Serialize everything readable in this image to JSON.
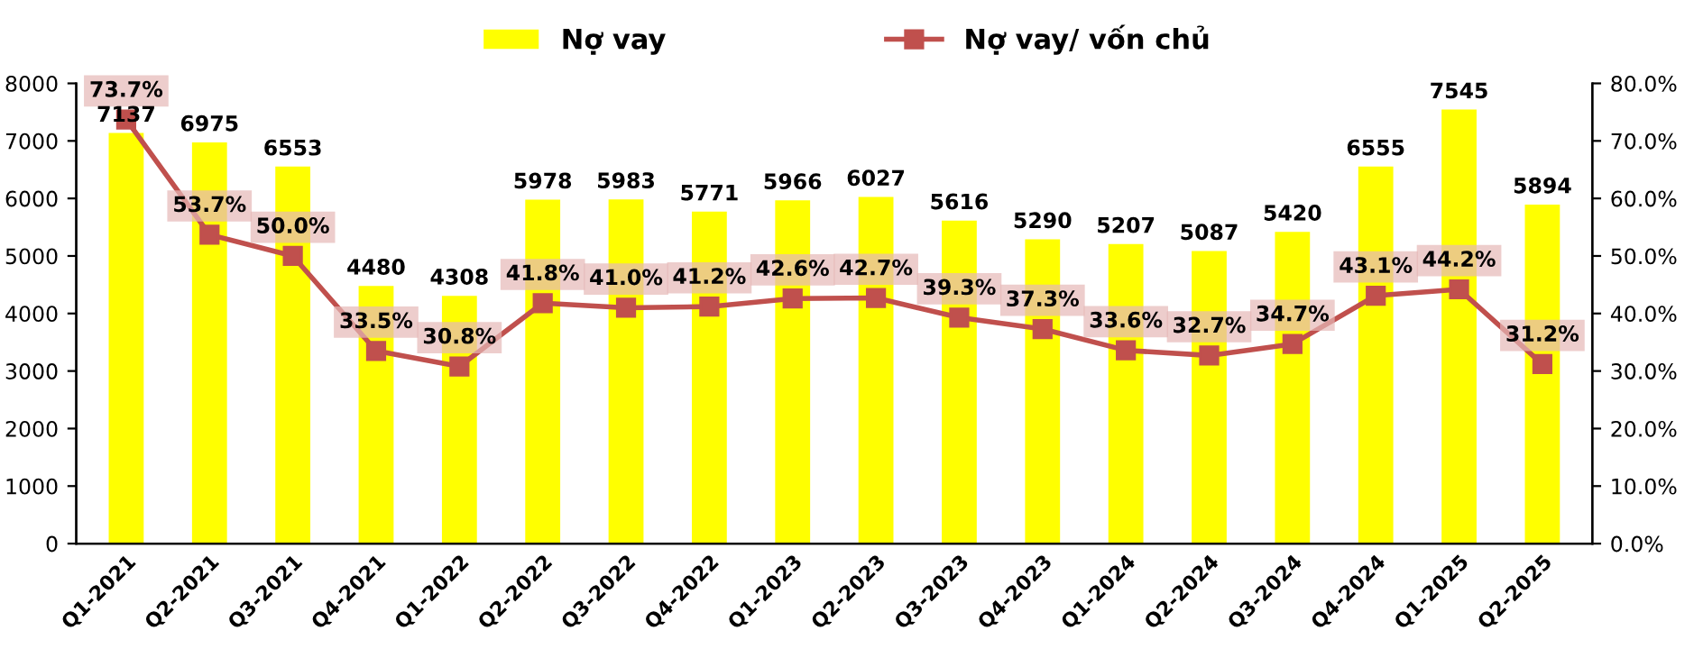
{
  "chart_data": {
    "type": "bar",
    "categories": [
      "Q1-2021",
      "Q2-2021",
      "Q3-2021",
      "Q4-2021",
      "Q1-2022",
      "Q2-2022",
      "Q3-2022",
      "Q4-2022",
      "Q1-2023",
      "Q2-2023",
      "Q3-2023",
      "Q4-2023",
      "Q1-2024",
      "Q2-2024",
      "Q3-2024",
      "Q4-2024",
      "Q1-2025",
      "Q2-2025"
    ],
    "series": [
      {
        "name": "Nợ vay",
        "color": "#ffff00",
        "values": [
          7137,
          6975,
          6553,
          4480,
          4308,
          5978,
          5983,
          5771,
          5966,
          6027,
          5616,
          5290,
          5207,
          5087,
          5420,
          6555,
          7545,
          5894
        ],
        "value_labels": [
          "7137",
          "6975",
          "6553",
          "4480",
          "4308",
          "5978",
          "5983",
          "5771",
          "5966",
          "6027",
          "5616",
          "5290",
          "5207",
          "5087",
          "5420",
          "6555",
          "7545",
          "5894"
        ]
      },
      {
        "name": "Nợ vay/ vốn chủ",
        "type": "line",
        "axis": "y2",
        "color": "#c0504d",
        "marker": "square",
        "line_style": "solid",
        "values": [
          73.7,
          53.7,
          50.0,
          33.5,
          30.8,
          41.8,
          41.0,
          41.2,
          42.6,
          42.7,
          39.3,
          37.3,
          33.6,
          32.7,
          34.7,
          43.1,
          44.2,
          31.2
        ],
        "value_labels": [
          "73.7%",
          "53.7%",
          "50.0%",
          "33.5%",
          "30.8%",
          "41.8%",
          "41.0%",
          "41.2%",
          "42.6%",
          "42.7%",
          "39.3%",
          "37.3%",
          "33.6%",
          "32.7%",
          "34.7%",
          "43.1%",
          "44.2%",
          "31.2%"
        ]
      }
    ],
    "ylim": [
      0,
      8000
    ],
    "yticks": [
      0,
      1000,
      2000,
      3000,
      4000,
      5000,
      6000,
      7000,
      8000
    ],
    "y2lim": [
      0,
      80
    ],
    "y2ticks": [
      {
        "value": 0,
        "label": "0.0%"
      },
      {
        "value": 10,
        "label": "10.0%"
      },
      {
        "value": 20,
        "label": "20.0%"
      },
      {
        "value": 30,
        "label": "30.0%"
      },
      {
        "value": 40,
        "label": "40.0%"
      },
      {
        "value": 50,
        "label": "50.0%"
      },
      {
        "value": 60,
        "label": "60.0%"
      },
      {
        "value": 70,
        "label": "70.0%"
      },
      {
        "value": 80,
        "label": "80.0%"
      }
    ],
    "grid": false,
    "legend": "top"
  }
}
